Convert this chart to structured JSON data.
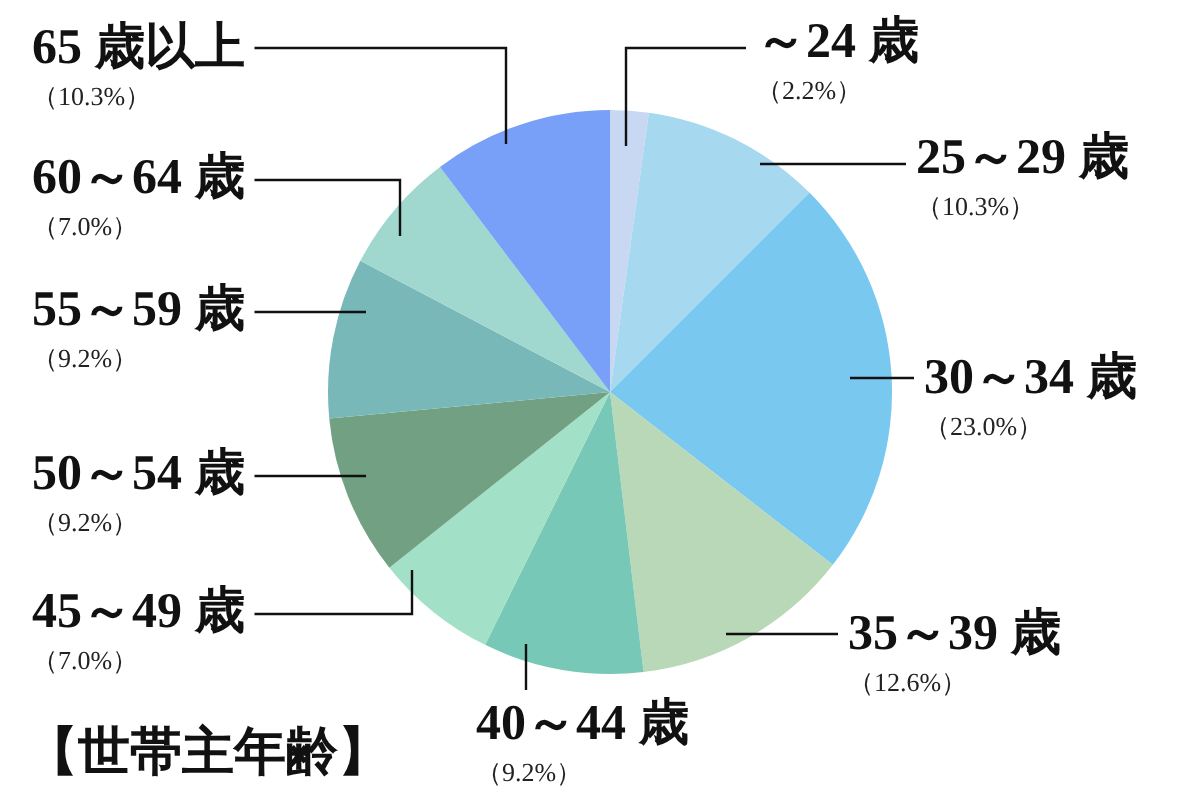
{
  "chart_data": {
    "type": "pie",
    "title": "【世帯主年齢】",
    "categories": [
      "～24 歳",
      "25～29 歳",
      "30～34 歳",
      "35～39 歳",
      "40～44 歳",
      "45～49 歳",
      "50～54 歳",
      "55～59 歳",
      "60～64 歳",
      "65 歳以上"
    ],
    "values": [
      2.2,
      10.3,
      23.0,
      12.6,
      9.2,
      7.0,
      9.2,
      9.2,
      7.0,
      10.3
    ],
    "value_labels": [
      "（2.2%）",
      "（10.3%）",
      "（23.0%）",
      "（12.6%）",
      "（9.2%）",
      "（7.0%）",
      "（9.2%）",
      "（9.2%）",
      "（7.0%）",
      "（10.3%）"
    ],
    "colors": [
      "#c8d8f2",
      "#a6d8f0",
      "#78c8f0",
      "#b8d8b8",
      "#78c8b8",
      "#a2e0c8",
      "#72a082",
      "#78b8b8",
      "#a0d8d0",
      "#78a0f8"
    ]
  }
}
